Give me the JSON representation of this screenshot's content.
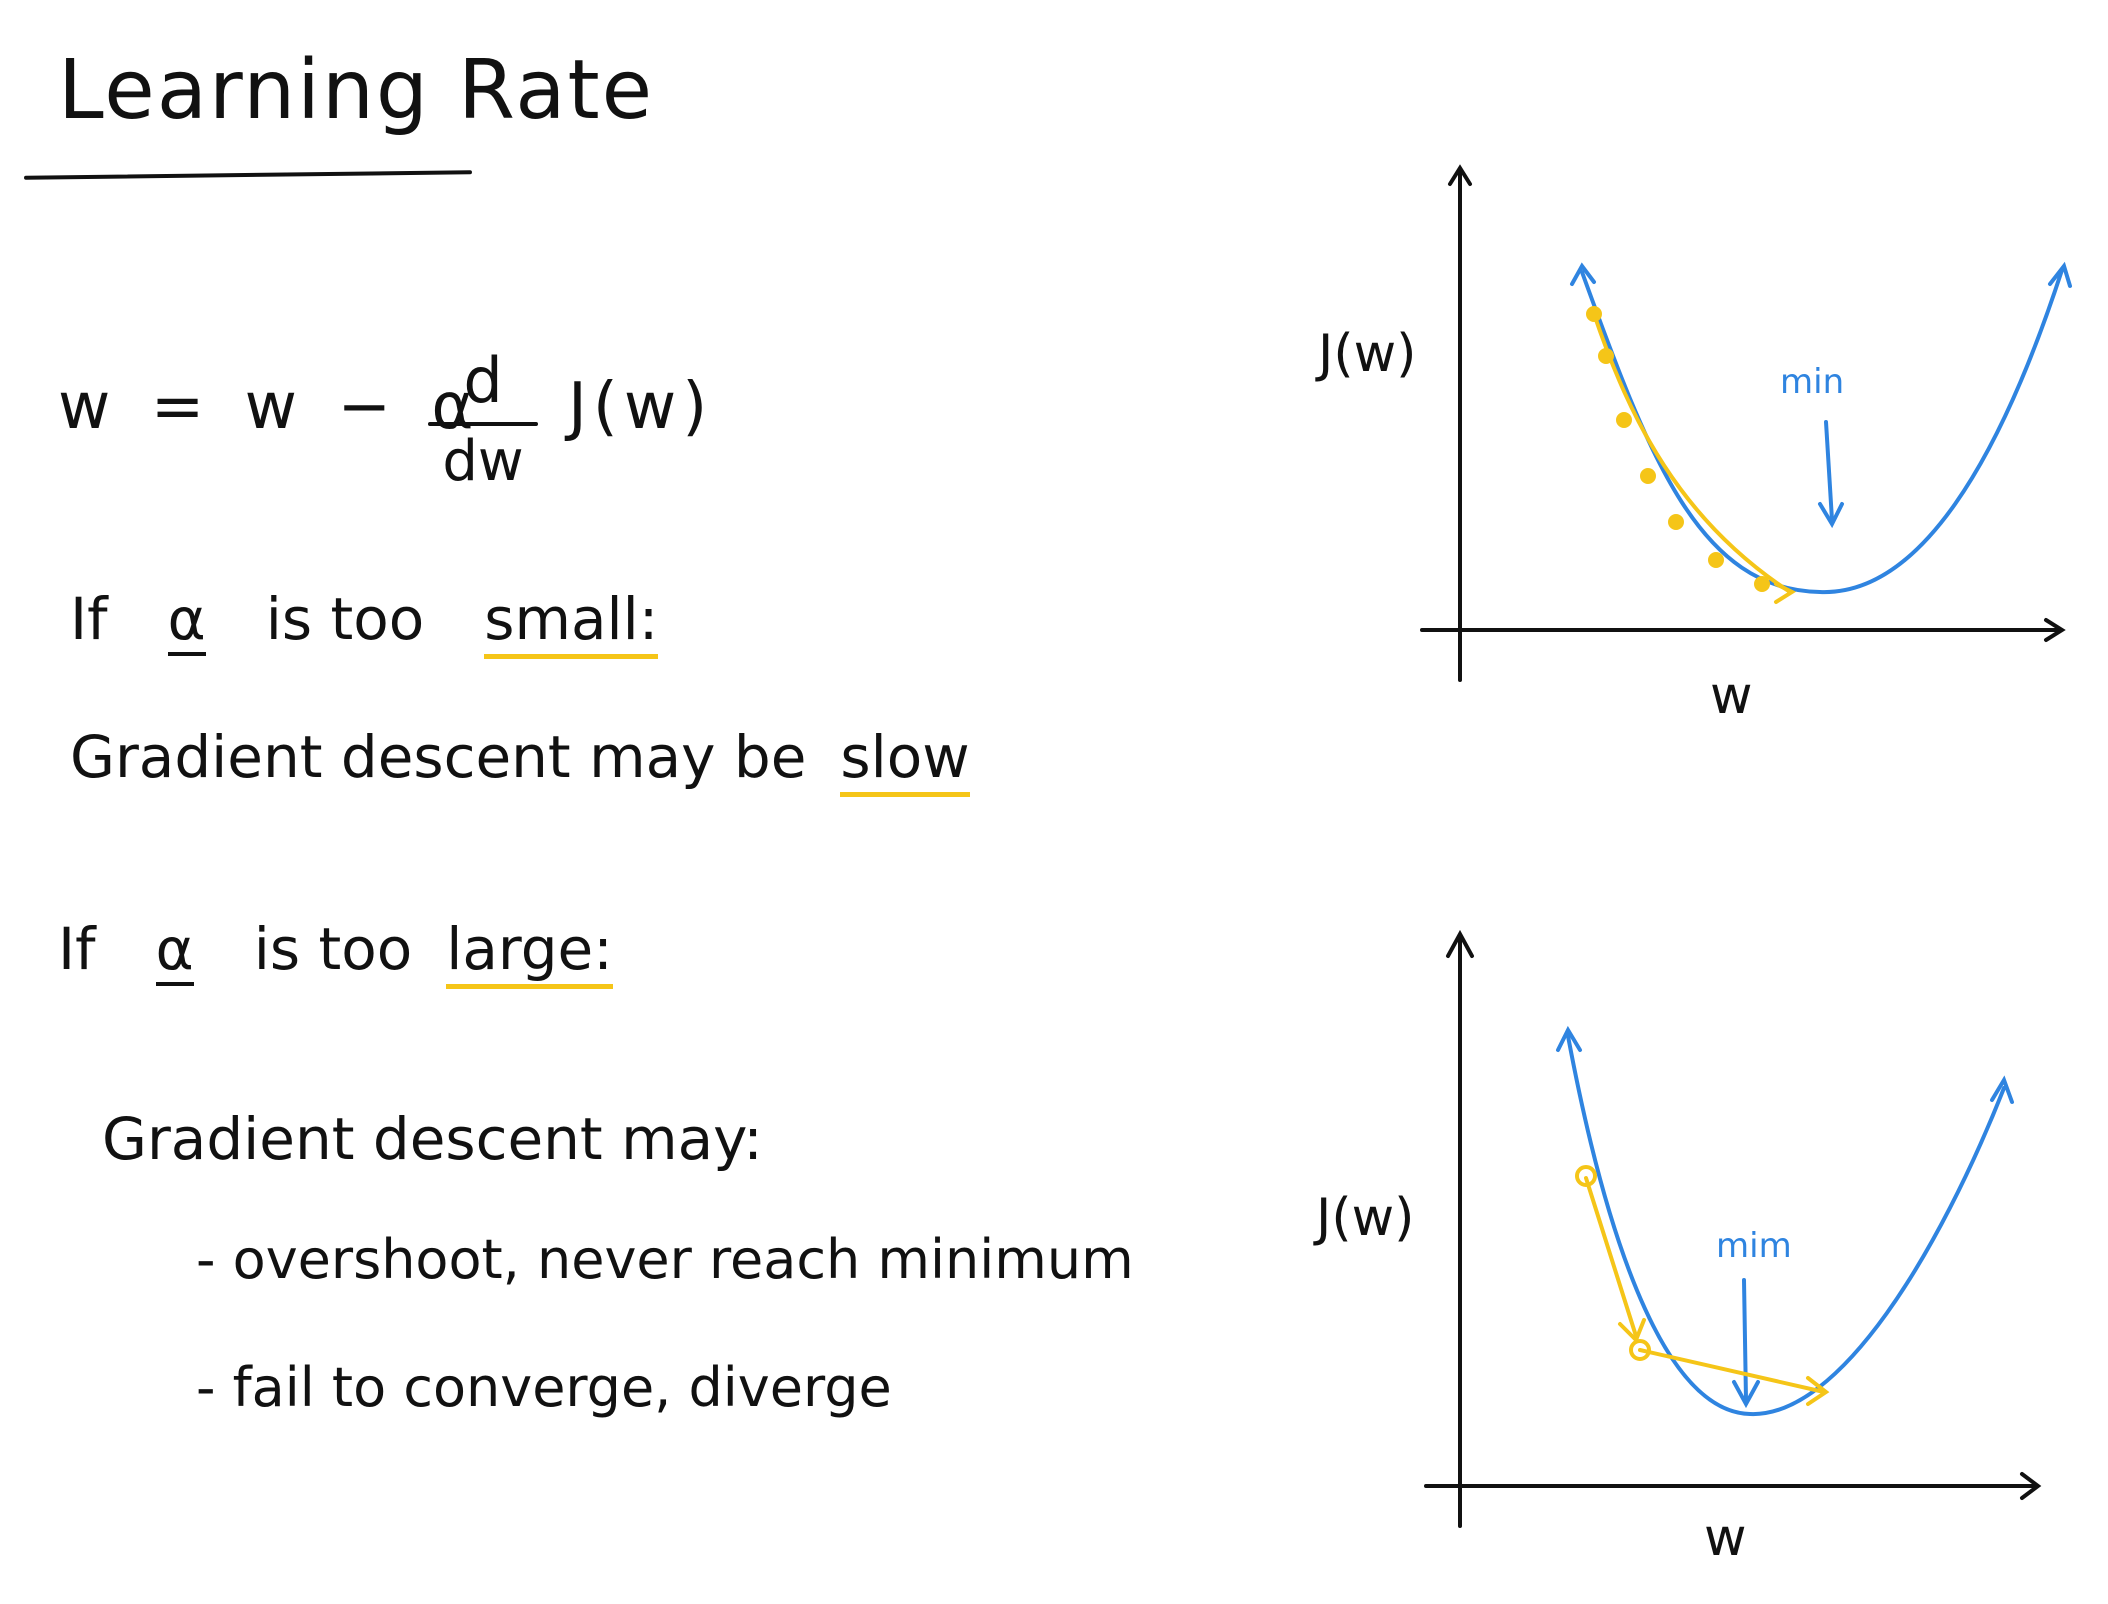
{
  "title": "Learning Rate",
  "equation": {
    "lhs": "w = w − α",
    "numerator": "d",
    "denominator": "dw",
    "rhs": "J(w)"
  },
  "small_case": {
    "prefix": "If",
    "alpha": "α",
    "middle": "is too",
    "keyword": "small:",
    "consequence_prefix": "Gradient descent may be",
    "consequence_keyword": "slow"
  },
  "large_case": {
    "prefix": "If",
    "alpha": "α",
    "middle": "is too",
    "keyword": "large:",
    "consequence": "Gradient descent may:",
    "bullets": [
      "- overshoot, never reach minimum",
      "- fail to converge, diverge"
    ]
  },
  "graphs": [
    {
      "y_label": "J(w)",
      "x_label": "w",
      "min_label": "min"
    },
    {
      "y_label": "J(w)",
      "x_label": "w",
      "min_label": "mim"
    }
  ],
  "colors": {
    "ink": "#111111",
    "curve": "#2f84e0",
    "steps": "#f5c518"
  }
}
